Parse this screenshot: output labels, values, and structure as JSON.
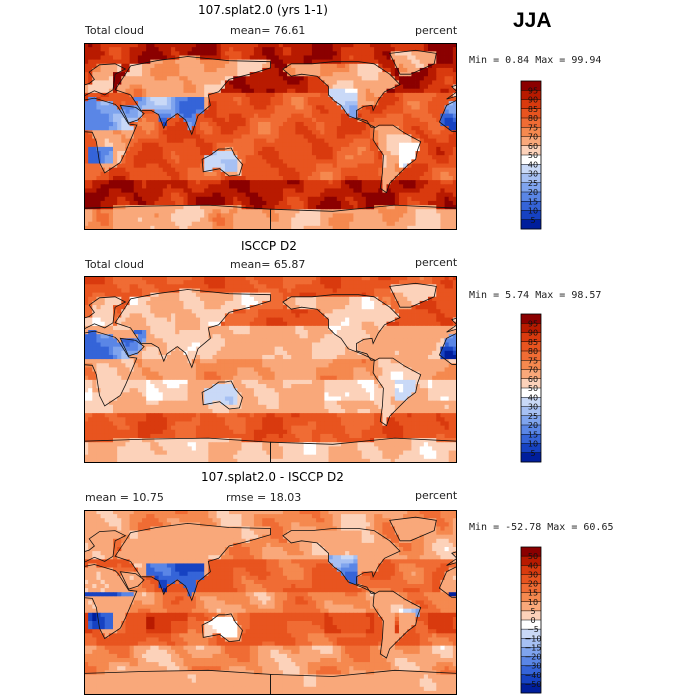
{
  "season": "JJA",
  "panels": [
    {
      "title": "107.splat2.0 (yrs 1-1)",
      "left": "Total cloud",
      "mid": "mean=  76.61",
      "right": "percent",
      "minmax": "Min =   0.84 Max =  99.94",
      "colorbar": {
        "labels": [
          "95",
          "90",
          "85",
          "80",
          "75",
          "70",
          "60",
          "50",
          "40",
          "30",
          "25",
          "20",
          "15",
          "10",
          "5"
        ],
        "colors": [
          "#8b0000",
          "#b81a00",
          "#d93a0e",
          "#e8541f",
          "#f06c34",
          "#f5894f",
          "#f9a87a",
          "#fcd2ba",
          "#ffffff",
          "#c9d9f7",
          "#a6c0f3",
          "#7fa4ee",
          "#5a86e6",
          "#3564d8",
          "#1642c2",
          "#001e9c"
        ]
      },
      "field": "model"
    },
    {
      "title": "ISCCP D2",
      "left": "Total cloud",
      "mid": "mean=  65.87",
      "right": "percent",
      "minmax": "Min =   5.74 Max =  98.57",
      "colorbar": {
        "labels": [
          "95",
          "90",
          "85",
          "80",
          "75",
          "70",
          "60",
          "50",
          "40",
          "30",
          "25",
          "20",
          "15",
          "10",
          "5"
        ],
        "colors": [
          "#8b0000",
          "#b81a00",
          "#d93a0e",
          "#e8541f",
          "#f06c34",
          "#f5894f",
          "#f9a87a",
          "#fcd2ba",
          "#ffffff",
          "#c9d9f7",
          "#a6c0f3",
          "#7fa4ee",
          "#5a86e6",
          "#3564d8",
          "#1642c2",
          "#001e9c"
        ]
      },
      "field": "obs"
    },
    {
      "title": "107.splat2.0 - ISCCP D2",
      "left": "mean =  10.75",
      "mid": "rmse =  18.03",
      "right": "percent",
      "minmax": "Min = -52.78 Max =  60.65",
      "colorbar": {
        "labels": [
          "50",
          "40",
          "30",
          "20",
          "15",
          "10",
          "5",
          "0",
          "−5",
          "−10",
          "−15",
          "−20",
          "−30",
          "−40",
          "−50"
        ],
        "colors": [
          "#8b0000",
          "#b81a00",
          "#d93a0e",
          "#e8541f",
          "#f06c34",
          "#f5894f",
          "#f9a87a",
          "#fcd2ba",
          "#ffffff",
          "#c9d9f7",
          "#a6c0f3",
          "#7fa4ee",
          "#5a86e6",
          "#3564d8",
          "#1642c2",
          "#001e9c"
        ]
      },
      "field": "diff"
    }
  ],
  "chart_data": [
    {
      "type": "heatmap",
      "title": "107.splat2.0 (yrs 1-1)",
      "variable": "Total cloud",
      "units": "percent",
      "mean": 76.61,
      "min": 0.84,
      "max": 99.94,
      "levels": [
        5,
        10,
        15,
        20,
        25,
        30,
        40,
        50,
        60,
        70,
        75,
        80,
        85,
        90,
        95
      ],
      "x": "longitude",
      "y": "latitude"
    },
    {
      "type": "heatmap",
      "title": "ISCCP D2",
      "variable": "Total cloud",
      "units": "percent",
      "mean": 65.87,
      "min": 5.74,
      "max": 98.57,
      "levels": [
        5,
        10,
        15,
        20,
        25,
        30,
        40,
        50,
        60,
        70,
        75,
        80,
        85,
        90,
        95
      ],
      "x": "longitude",
      "y": "latitude"
    },
    {
      "type": "heatmap",
      "title": "107.splat2.0 - ISCCP D2",
      "units": "percent",
      "mean": 10.75,
      "rmse": 18.03,
      "min": -52.78,
      "max": 60.65,
      "levels": [
        -50,
        -40,
        -30,
        -20,
        -15,
        -10,
        -5,
        0,
        5,
        10,
        15,
        20,
        30,
        40,
        50
      ],
      "x": "longitude",
      "y": "latitude"
    }
  ]
}
